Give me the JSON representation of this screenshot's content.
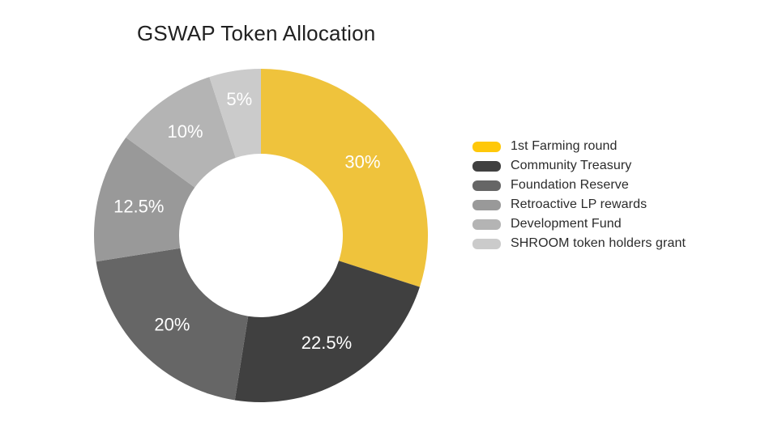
{
  "page": {
    "background": "#FFFFFF"
  },
  "chart_data": {
    "type": "pie",
    "variant": "donut",
    "title": "GSWAP Token Allocation",
    "categories": [
      "1st Farming round",
      "Community Treasury",
      "Foundation Reserve",
      "Retroactive LP rewards",
      "Development Fund",
      "SHROOM token holders grant"
    ],
    "values": [
      30,
      22.5,
      20,
      12.5,
      10,
      5
    ],
    "slice_labels": [
      "30%",
      "22.5%",
      "20%",
      "12.5%",
      "10%",
      "5%"
    ],
    "slice_colors": [
      "#EFC33C",
      "#404040",
      "#666666",
      "#999999",
      "#B4B4B4",
      "#CBCBCB"
    ],
    "legend_swatch_colors": [
      "#FFC80A",
      "#404040",
      "#666666",
      "#999999",
      "#B4B4B4",
      "#CBCBCB"
    ],
    "slice_label_color": "#FFFFFF",
    "title_color": "#212121",
    "start_angle_deg": 0,
    "direction": "clockwise",
    "donut_hole_ratio": 0.49,
    "legend_position": "right",
    "grid": false
  }
}
